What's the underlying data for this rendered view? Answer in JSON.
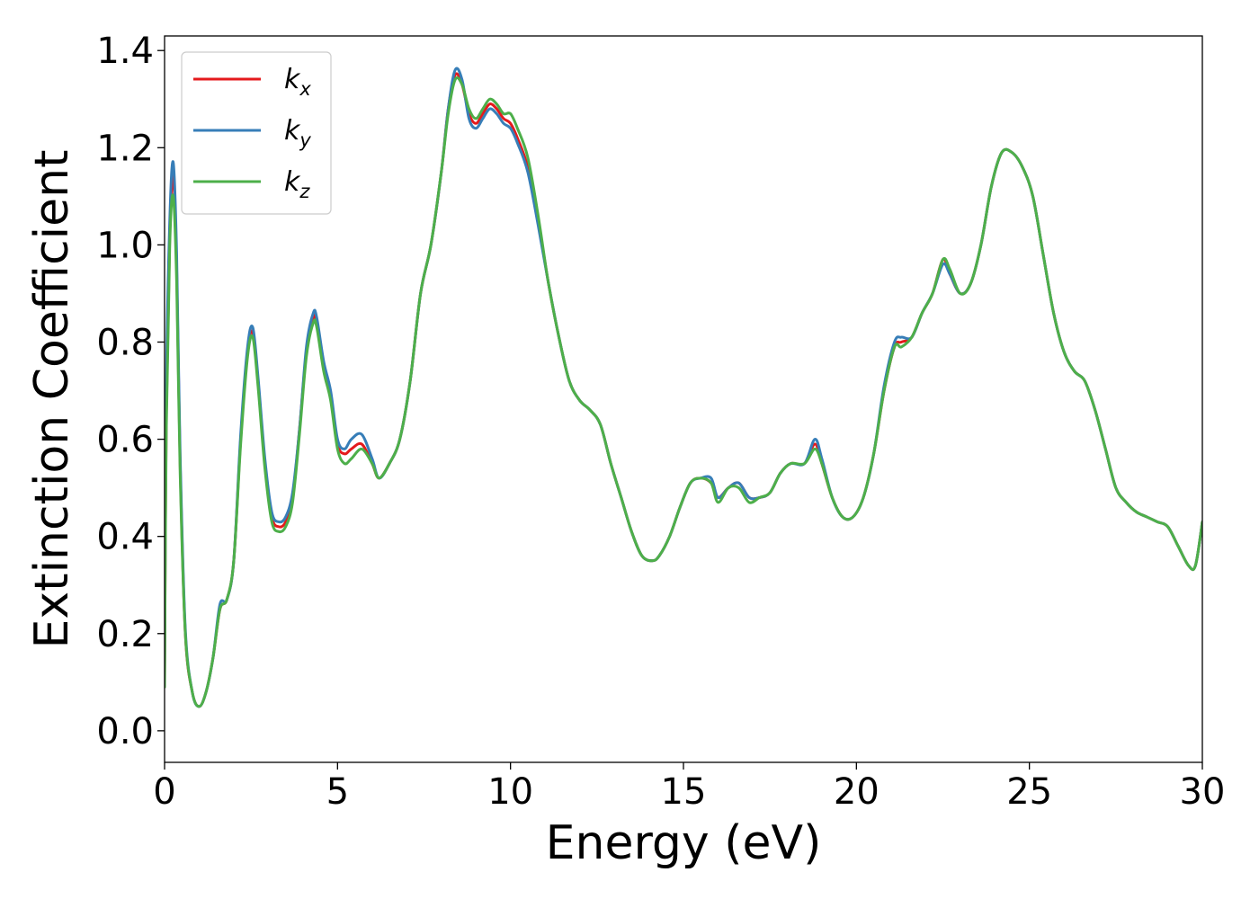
{
  "chart_data": {
    "type": "line",
    "title": "",
    "xlabel": "Energy (eV)",
    "ylabel": "Extinction Coefficient",
    "xlim": [
      0,
      30
    ],
    "ylim": [
      -0.065,
      1.43
    ],
    "xticks": [
      0,
      5,
      10,
      15,
      20,
      25,
      30
    ],
    "xtick_labels": [
      "0",
      "5",
      "10",
      "15",
      "20",
      "25",
      "30"
    ],
    "yticks": [
      0.0,
      0.2,
      0.4,
      0.6,
      0.8,
      1.0,
      1.2,
      1.4
    ],
    "ytick_labels": [
      "0.0",
      "0.2",
      "0.4",
      "0.6",
      "0.8",
      "1.0",
      "1.2",
      "1.4"
    ],
    "grid": false,
    "legend_position": "top-left",
    "x": [
      0.0,
      0.05,
      0.15,
      0.25,
      0.35,
      0.45,
      0.6,
      0.8,
      1.0,
      1.2,
      1.4,
      1.6,
      1.8,
      2.0,
      2.2,
      2.4,
      2.55,
      2.7,
      2.9,
      3.1,
      3.3,
      3.5,
      3.7,
      3.9,
      4.1,
      4.3,
      4.4,
      4.6,
      4.8,
      5.0,
      5.2,
      5.4,
      5.7,
      6.0,
      6.2,
      6.5,
      6.8,
      7.1,
      7.4,
      7.7,
      8.0,
      8.2,
      8.4,
      8.6,
      8.8,
      9.0,
      9.2,
      9.4,
      9.6,
      9.8,
      10.0,
      10.2,
      10.5,
      10.8,
      11.1,
      11.4,
      11.7,
      12.0,
      12.3,
      12.6,
      12.9,
      13.2,
      13.5,
      13.8,
      14.1,
      14.3,
      14.6,
      14.9,
      15.2,
      15.5,
      15.8,
      16.0,
      16.3,
      16.6,
      16.9,
      17.2,
      17.5,
      17.8,
      18.1,
      18.5,
      18.8,
      19.0,
      19.3,
      19.6,
      19.9,
      20.2,
      20.5,
      20.8,
      21.1,
      21.3,
      21.6,
      21.9,
      22.2,
      22.5,
      22.7,
      23.0,
      23.3,
      23.6,
      23.9,
      24.2,
      24.5,
      24.8,
      25.1,
      25.4,
      25.7,
      26.0,
      26.3,
      26.6,
      26.9,
      27.2,
      27.5,
      27.8,
      28.1,
      28.4,
      28.7,
      29.0,
      29.3,
      29.6,
      29.8,
      30.0
    ],
    "series": [
      {
        "name": "k_x",
        "color": "#e41a1c",
        "values": [
          0.1,
          0.65,
          1.02,
          1.14,
          0.95,
          0.55,
          0.2,
          0.08,
          0.05,
          0.08,
          0.15,
          0.25,
          0.27,
          0.35,
          0.6,
          0.78,
          0.82,
          0.72,
          0.55,
          0.44,
          0.42,
          0.43,
          0.48,
          0.62,
          0.78,
          0.85,
          0.84,
          0.75,
          0.69,
          0.59,
          0.57,
          0.58,
          0.59,
          0.55,
          0.52,
          0.55,
          0.6,
          0.72,
          0.9,
          1.0,
          1.15,
          1.28,
          1.35,
          1.33,
          1.27,
          1.25,
          1.27,
          1.29,
          1.28,
          1.26,
          1.25,
          1.22,
          1.16,
          1.05,
          0.92,
          0.81,
          0.72,
          0.68,
          0.66,
          0.63,
          0.55,
          0.48,
          0.41,
          0.36,
          0.35,
          0.36,
          0.4,
          0.46,
          0.51,
          0.52,
          0.51,
          0.48,
          0.5,
          0.51,
          0.48,
          0.48,
          0.49,
          0.53,
          0.55,
          0.55,
          0.59,
          0.55,
          0.48,
          0.44,
          0.44,
          0.48,
          0.57,
          0.7,
          0.79,
          0.8,
          0.81,
          0.86,
          0.9,
          0.97,
          0.94,
          0.9,
          0.92,
          1.0,
          1.12,
          1.19,
          1.19,
          1.16,
          1.1,
          0.98,
          0.86,
          0.78,
          0.74,
          0.72,
          0.66,
          0.58,
          0.5,
          0.47,
          0.45,
          0.44,
          0.43,
          0.42,
          0.38,
          0.34,
          0.34,
          0.43
        ]
      },
      {
        "name": "k_y",
        "color": "#377eb8",
        "values": [
          0.12,
          0.7,
          1.05,
          1.17,
          0.98,
          0.57,
          0.21,
          0.08,
          0.05,
          0.08,
          0.15,
          0.26,
          0.27,
          0.35,
          0.61,
          0.79,
          0.83,
          0.73,
          0.56,
          0.45,
          0.43,
          0.44,
          0.49,
          0.62,
          0.79,
          0.86,
          0.85,
          0.76,
          0.7,
          0.6,
          0.58,
          0.6,
          0.61,
          0.56,
          0.52,
          0.55,
          0.6,
          0.72,
          0.9,
          1.0,
          1.15,
          1.28,
          1.36,
          1.34,
          1.26,
          1.24,
          1.26,
          1.28,
          1.27,
          1.25,
          1.24,
          1.21,
          1.15,
          1.04,
          0.92,
          0.81,
          0.72,
          0.68,
          0.66,
          0.63,
          0.55,
          0.48,
          0.41,
          0.36,
          0.35,
          0.36,
          0.4,
          0.46,
          0.51,
          0.52,
          0.52,
          0.48,
          0.5,
          0.51,
          0.48,
          0.48,
          0.49,
          0.53,
          0.55,
          0.55,
          0.6,
          0.56,
          0.48,
          0.44,
          0.44,
          0.48,
          0.57,
          0.71,
          0.8,
          0.81,
          0.81,
          0.86,
          0.9,
          0.96,
          0.94,
          0.9,
          0.92,
          1.0,
          1.12,
          1.19,
          1.19,
          1.16,
          1.1,
          0.98,
          0.86,
          0.78,
          0.74,
          0.72,
          0.66,
          0.58,
          0.5,
          0.47,
          0.45,
          0.44,
          0.43,
          0.42,
          0.38,
          0.34,
          0.34,
          0.43
        ]
      },
      {
        "name": "k_z",
        "color": "#4daf4a",
        "values": [
          0.09,
          0.62,
          1.0,
          1.1,
          0.92,
          0.53,
          0.2,
          0.08,
          0.05,
          0.08,
          0.15,
          0.25,
          0.27,
          0.35,
          0.59,
          0.77,
          0.81,
          0.71,
          0.54,
          0.43,
          0.41,
          0.42,
          0.47,
          0.61,
          0.77,
          0.84,
          0.83,
          0.74,
          0.68,
          0.58,
          0.55,
          0.56,
          0.58,
          0.55,
          0.52,
          0.55,
          0.6,
          0.72,
          0.9,
          1.0,
          1.15,
          1.27,
          1.34,
          1.33,
          1.28,
          1.26,
          1.28,
          1.3,
          1.29,
          1.27,
          1.27,
          1.24,
          1.18,
          1.06,
          0.92,
          0.81,
          0.72,
          0.68,
          0.66,
          0.63,
          0.55,
          0.48,
          0.41,
          0.36,
          0.35,
          0.36,
          0.4,
          0.46,
          0.51,
          0.52,
          0.51,
          0.47,
          0.5,
          0.5,
          0.47,
          0.48,
          0.49,
          0.53,
          0.55,
          0.55,
          0.58,
          0.55,
          0.48,
          0.44,
          0.44,
          0.48,
          0.57,
          0.7,
          0.79,
          0.79,
          0.81,
          0.86,
          0.9,
          0.97,
          0.95,
          0.9,
          0.92,
          1.0,
          1.12,
          1.19,
          1.19,
          1.16,
          1.1,
          0.98,
          0.86,
          0.78,
          0.74,
          0.72,
          0.66,
          0.58,
          0.5,
          0.47,
          0.45,
          0.44,
          0.43,
          0.42,
          0.38,
          0.34,
          0.34,
          0.43
        ]
      }
    ]
  },
  "legend": {
    "items": [
      {
        "base": "k",
        "sub": "x",
        "color": "#e41a1c"
      },
      {
        "base": "k",
        "sub": "y",
        "color": "#377eb8"
      },
      {
        "base": "k",
        "sub": "z",
        "color": "#4daf4a"
      }
    ]
  }
}
